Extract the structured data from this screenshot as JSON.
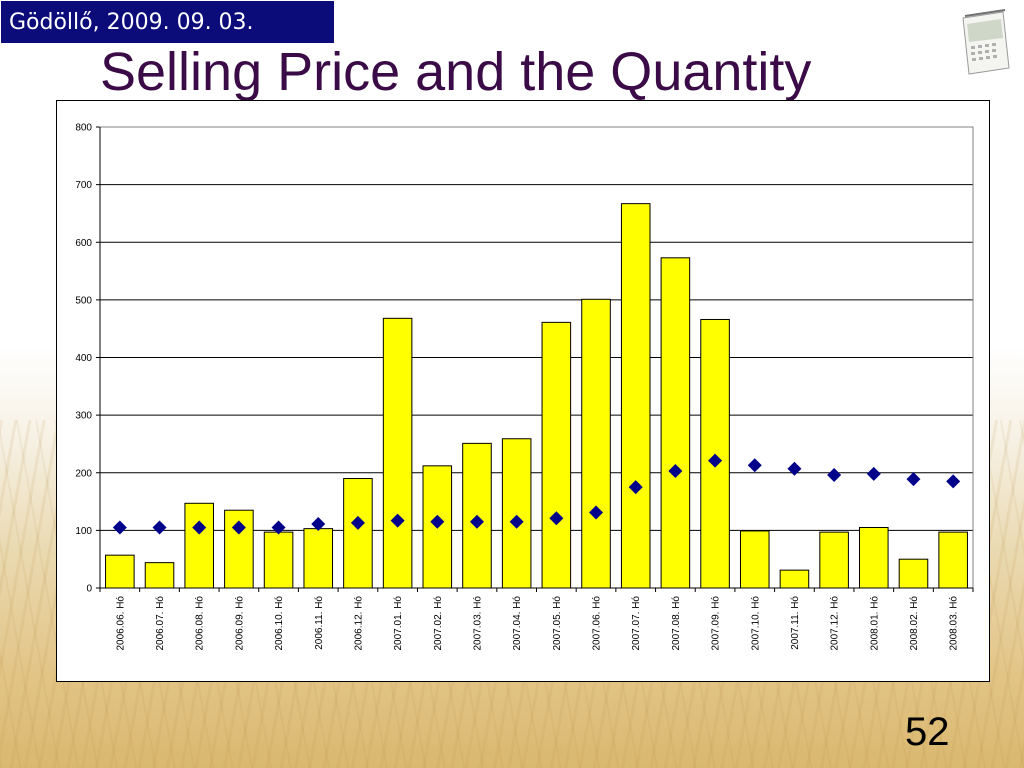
{
  "header": {
    "date_location": "Gödöllő, 2009. 09. 03.",
    "title": "Selling Price and the Quantity"
  },
  "footer": {
    "page_number": "52"
  },
  "colors": {
    "bar_fill": "#ffff00",
    "bar_stroke": "#000000",
    "marker": "#00008b",
    "title": "#3a0b46",
    "date_box_bg": "#0b0b7a"
  },
  "chart_data": {
    "type": "bar",
    "categories": [
      "2006.06. Hó",
      "2006.07. Hó",
      "2006.08. Hó",
      "2006.09. Hó",
      "2006.10. Hó",
      "2006.11. Hó",
      "2006.12. Hó",
      "2007.01. Hó",
      "2007.02. Hó",
      "2007.03. Hó",
      "2007.04. Hó",
      "2007.05. Hó",
      "2007.06. Hó",
      "2007.07. Hó",
      "2007.08. Hó",
      "2007.09. Hó",
      "2007.10. Hó",
      "2007.11. Hó",
      "2007.12. Hó",
      "2008.01. Hó",
      "2008.02. Hó",
      "2008.03. Hó"
    ],
    "series": [
      {
        "type": "bar",
        "values": [
          57,
          44,
          147,
          135,
          97,
          103,
          190,
          468,
          212,
          251,
          259,
          461,
          501,
          667,
          573,
          466,
          99,
          31,
          97,
          105,
          50,
          97
        ]
      },
      {
        "type": "scatter",
        "marker": "diamond",
        "values": [
          105,
          105,
          105,
          105,
          105,
          111,
          113,
          117,
          115,
          115,
          115,
          121,
          131,
          175,
          203,
          221,
          213,
          207,
          196,
          198,
          189,
          185
        ]
      }
    ],
    "yticks": [
      "0",
      "100",
      "200",
      "300",
      "400",
      "500",
      "600",
      "700",
      "800"
    ],
    "ylim": [
      0,
      800
    ],
    "grid": true,
    "legend": "none"
  }
}
